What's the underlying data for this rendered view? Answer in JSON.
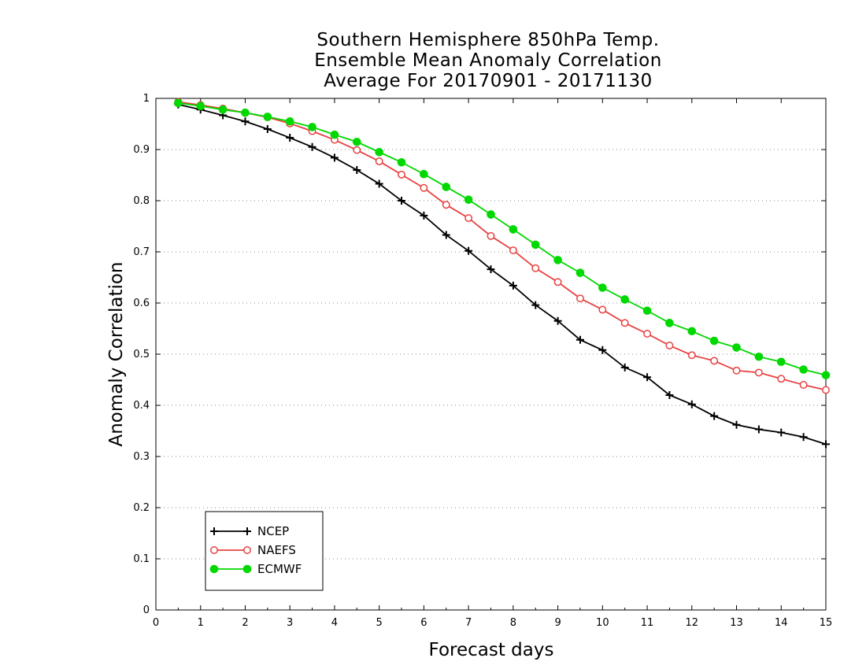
{
  "chart_data": {
    "type": "line",
    "title_lines": [
      "Southern Hemisphere 850hPa Temp.",
      "Ensemble Mean Anomaly Correlation",
      "Average For 20170901 - 20171130"
    ],
    "xlabel": "Forecast days",
    "ylabel": "Anomaly Correlation",
    "xlim": [
      0,
      15
    ],
    "ylim": [
      0,
      1
    ],
    "xticks": [
      "0",
      "1",
      "2",
      "3",
      "4",
      "5",
      "6",
      "7",
      "8",
      "9",
      "10",
      "11",
      "12",
      "13",
      "14",
      "15"
    ],
    "yticks": [
      "0",
      "0.1",
      "0.2",
      "0.3",
      "0.4",
      "0.5",
      "0.6",
      "0.7",
      "0.8",
      "0.9",
      "1"
    ],
    "grid": "horizontal-dotted",
    "legend_position": "bottom-left",
    "x": [
      0.5,
      1,
      1.5,
      2,
      2.5,
      3,
      3.5,
      4,
      4.5,
      5,
      5.5,
      6,
      6.5,
      7,
      7.5,
      8,
      8.5,
      9,
      9.5,
      10,
      10.5,
      11,
      11.5,
      12,
      12.5,
      13,
      13.5,
      14,
      14.5,
      15
    ],
    "series": [
      {
        "name": "NCEP",
        "color": "#000000",
        "marker": "plus",
        "values": [
          0.988,
          0.978,
          0.967,
          0.955,
          0.94,
          0.923,
          0.905,
          0.884,
          0.86,
          0.833,
          0.8,
          0.771,
          0.733,
          0.702,
          0.666,
          0.634,
          0.596,
          0.565,
          0.528,
          0.508,
          0.474,
          0.455,
          0.42,
          0.402,
          0.379,
          0.362,
          0.353,
          0.347,
          0.338,
          0.324
        ]
      },
      {
        "name": "NAEFS",
        "color": "#e84040",
        "marker": "open-circle",
        "values": [
          0.993,
          0.987,
          0.98,
          0.972,
          0.963,
          0.951,
          0.936,
          0.919,
          0.899,
          0.877,
          0.851,
          0.825,
          0.792,
          0.766,
          0.731,
          0.703,
          0.668,
          0.641,
          0.609,
          0.587,
          0.561,
          0.54,
          0.517,
          0.498,
          0.487,
          0.468,
          0.464,
          0.452,
          0.44,
          0.43
        ]
      },
      {
        "name": "ECMWF",
        "color": "#00d800",
        "marker": "filled-circle",
        "values": [
          0.991,
          0.985,
          0.978,
          0.972,
          0.964,
          0.955,
          0.944,
          0.929,
          0.915,
          0.895,
          0.875,
          0.852,
          0.827,
          0.802,
          0.773,
          0.744,
          0.714,
          0.684,
          0.659,
          0.63,
          0.607,
          0.585,
          0.561,
          0.545,
          0.526,
          0.513,
          0.495,
          0.485,
          0.47,
          0.459
        ]
      }
    ]
  }
}
